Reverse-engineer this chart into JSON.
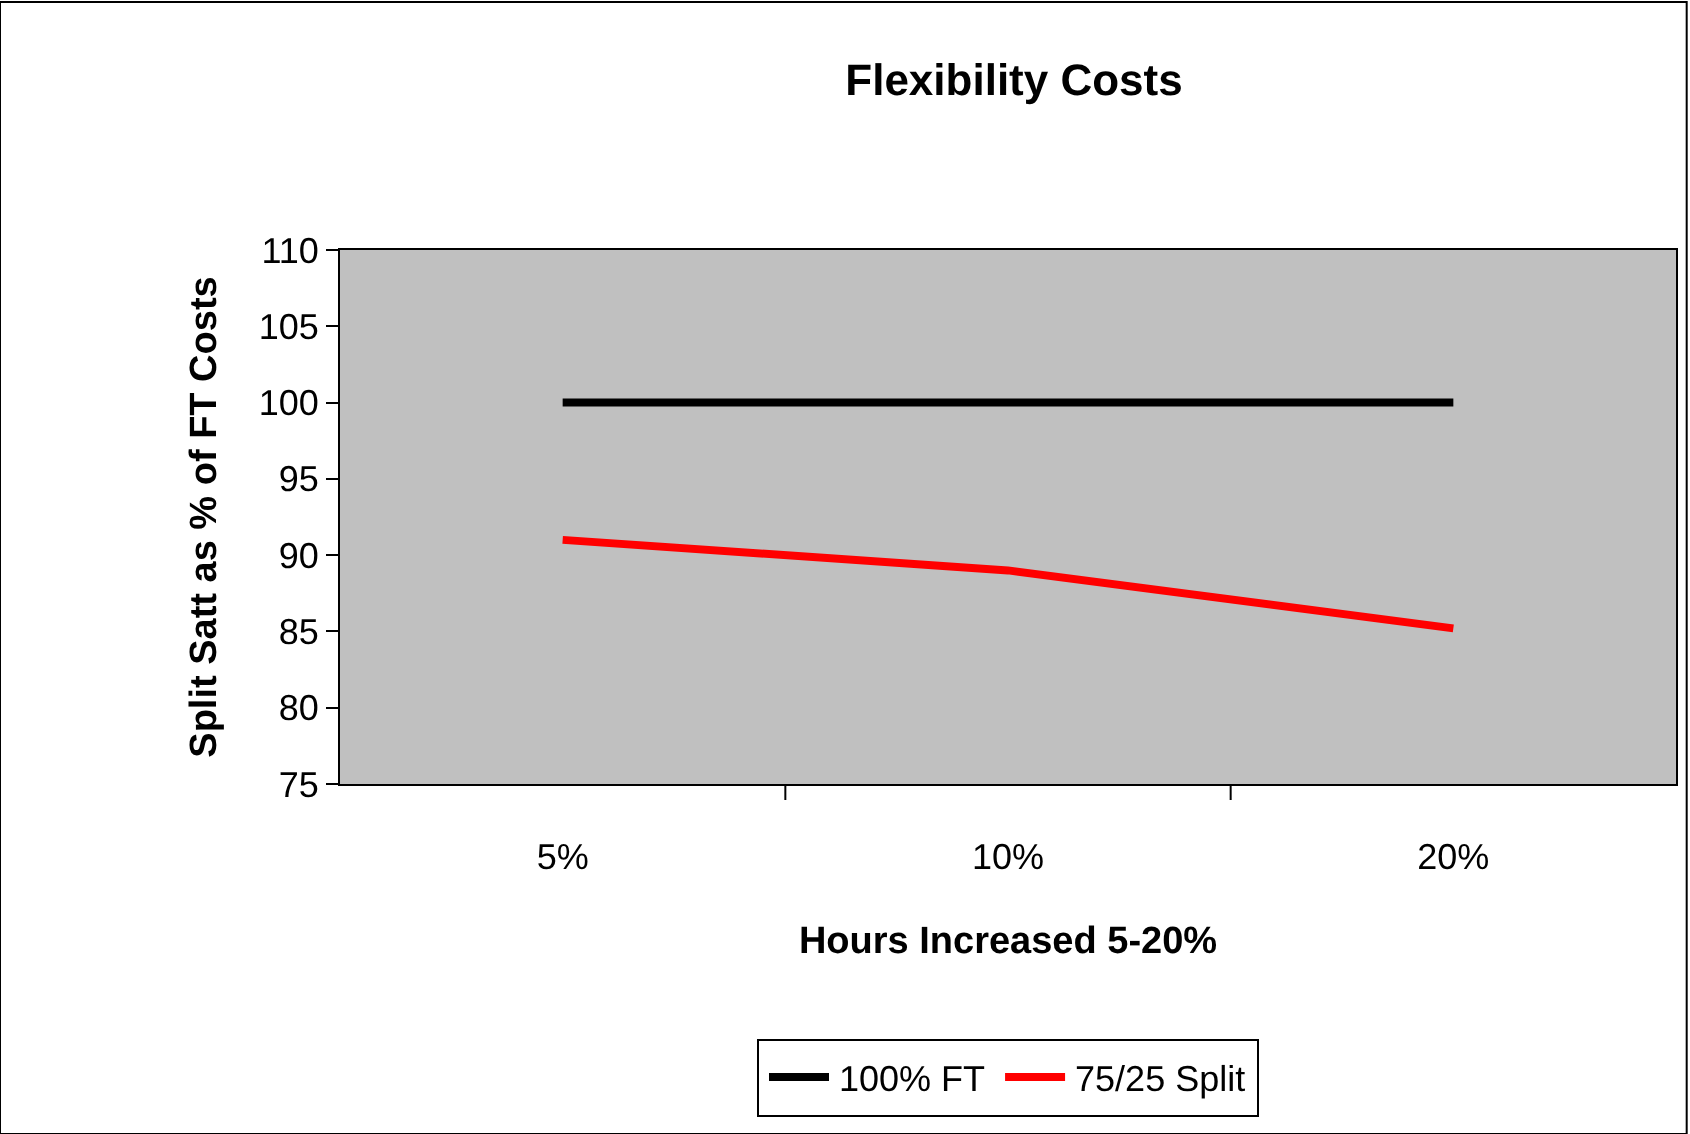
{
  "chart_data": {
    "type": "line",
    "title": "Flexibility Costs",
    "xlabel": "Hours Increased 5-20%",
    "ylabel": "Split Satt as % of FT Costs",
    "categories": [
      "5%",
      "10%",
      "20%"
    ],
    "series": [
      {
        "name": "100% FT",
        "color": "#000000",
        "values": [
          100,
          100,
          100
        ]
      },
      {
        "name": "75/25 Split",
        "color": "#ff0000",
        "values": [
          91,
          89,
          85.2
        ]
      }
    ],
    "ylim": [
      75,
      110
    ],
    "yticks": [
      75,
      80,
      85,
      90,
      95,
      100,
      105,
      110
    ],
    "legend": "bottom",
    "marker": "none",
    "line_style": "solid"
  }
}
